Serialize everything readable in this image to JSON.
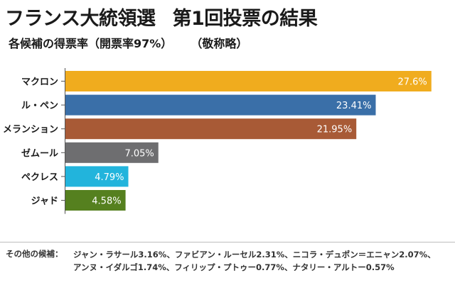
{
  "header": {
    "title": "フランス大統領選",
    "title_suffix": "第1回投票の結果",
    "subtitle": "各候補の得票率（開票率97%）",
    "subtitle_note": "（敬称略）"
  },
  "chart_data": {
    "type": "bar",
    "orientation": "horizontal",
    "title": "フランス大統領選　第1回投票の結果",
    "subtitle": "各候補の得票率（開票率97%）",
    "categories": [
      "マクロン",
      "ル・ペン",
      "メランション",
      "ゼムール",
      "ペクレス",
      "ジャド"
    ],
    "values": [
      27.6,
      23.41,
      21.95,
      7.05,
      4.79,
      4.58
    ],
    "value_labels": [
      "27.6%",
      "23.41%",
      "21.95%",
      "7.05%",
      "4.79%",
      "4.58%"
    ],
    "colors": [
      "#f0ac1e",
      "#3a6fa8",
      "#a85a36",
      "#6e6e70",
      "#22b4dc",
      "#55801f"
    ],
    "xlim": [
      0,
      28.2
    ],
    "grid": false,
    "legend": "none"
  },
  "footer": {
    "others_label": "その他の候補：",
    "others_line1": "ジャン・ラサール3.16%、ファビアン・ルーセル2.31%、ニコラ・デュポン＝エニャン2.07%、",
    "others_line2": "アンヌ・イダルゴ1.74%、フィリップ・プトゥー0.77%、ナタリー・アルトー0.57%"
  }
}
